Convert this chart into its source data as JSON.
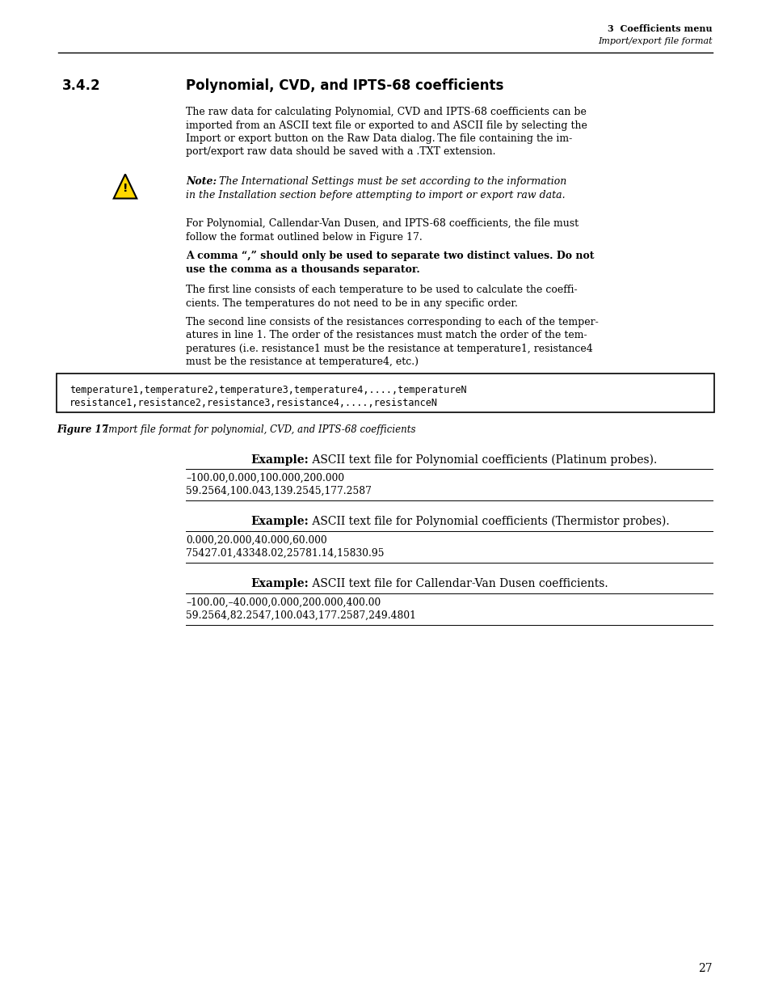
{
  "page_number": "27",
  "header_right_line1": "3  Coefficients menu",
  "header_right_line2": "Import/export file format",
  "section_number": "3.4.2",
  "section_title": "Polynomial, CVD, and IPTS-68 coefficients",
  "note_text_bold": "Note:",
  "note_text_italic": " The International Settings must be set according to the information\nin the Installation section before attempting to import or export raw data.",
  "box_line1": "temperature1,temperature2,temperature3,temperature4,....,temperatureN",
  "box_line2": "resistance1,resistance2,resistance3,resistance4,....,resistanceN",
  "figure_label": "Figure 17",
  "figure_caption": "  Import file format for polynomial, CVD, and IPTS-68 coefficients",
  "example1_line1": "–100.00,0.000,100.000,200.000",
  "example1_line2": "59.2564,100.043,139.2545,177.2587",
  "example2_line1": "0.000,20.000,40.000,60.000",
  "example2_line2": "75427.01,43348.02,25781.14,15830.95",
  "example3_line1": "–100.00,–40.000,0.000,200.000,400.00",
  "example3_line2": "59.2564,82.2547,100.043,177.2587,249.4801",
  "bg_color": "#ffffff",
  "text_color": "#000000"
}
